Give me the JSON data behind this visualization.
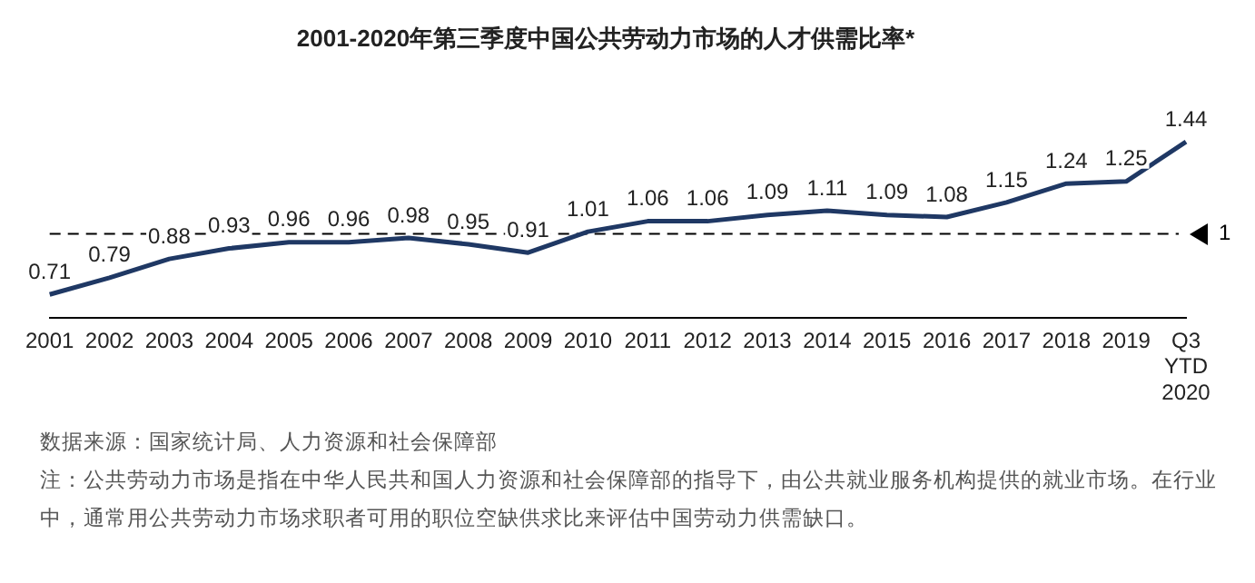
{
  "chart_data": {
    "type": "line",
    "title": "2001-2020年第三季度中国公共劳动力市场的人才供需比率*",
    "categories": [
      "2001",
      "2002",
      "2003",
      "2004",
      "2005",
      "2006",
      "2007",
      "2008",
      "2009",
      "2010",
      "2011",
      "2012",
      "2013",
      "2014",
      "2015",
      "2016",
      "2017",
      "2018",
      "2019",
      "Q3 YTD 2020"
    ],
    "series": [
      {
        "color": "#1f3864",
        "values": [
          0.71,
          0.79,
          0.88,
          0.93,
          0.96,
          0.96,
          0.98,
          0.95,
          0.91,
          1.01,
          1.06,
          1.06,
          1.09,
          1.11,
          1.09,
          1.08,
          1.15,
          1.24,
          1.25,
          1.44
        ]
      }
    ],
    "data_labels": true,
    "marker": "none",
    "legend": false,
    "grid": false,
    "tick_labels": "x",
    "ref_lines": [
      {
        "axis": "y",
        "value": 1,
        "label": "1",
        "color": "#000000",
        "line_style": "dashed"
      }
    ],
    "annotations": [
      "数据来源：国家统计局、人力资源和社会保障部",
      "注：公共劳动力市场是指在中华人民共和国人力资源和社会保障部的指导下，由公共就业服务机构提供的就业市场。在行业中，通常用公共劳动力市场求职者可用的职位空缺供求比来评估中国劳动力供需缺口。"
    ]
  }
}
